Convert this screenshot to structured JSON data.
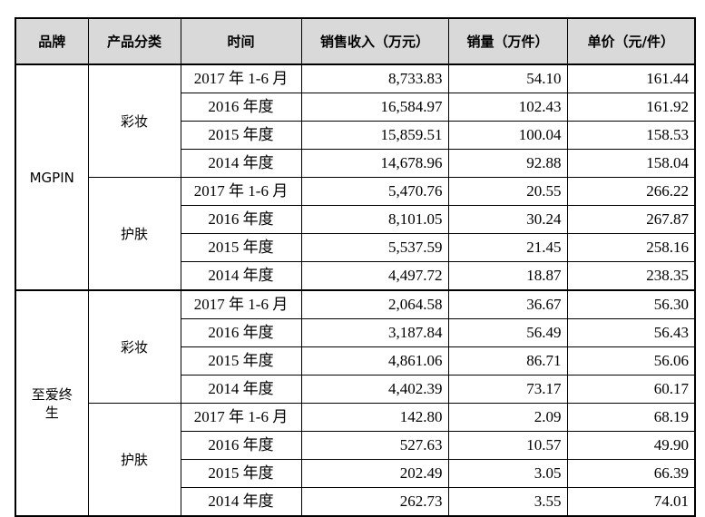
{
  "headers": {
    "brand": "品牌",
    "category": "产品分类",
    "time": "时间",
    "revenue": "销售收入（万元）",
    "volume": "销量（万件）",
    "unit_price": "单价（元/件）"
  },
  "brands": [
    {
      "name": "MGPIN",
      "categories": [
        {
          "name": "彩妆",
          "rows": [
            {
              "time": "2017 年 1-6 月",
              "revenue": "8,733.83",
              "volume": "54.10",
              "price": "161.44"
            },
            {
              "time": "2016 年度",
              "revenue": "16,584.97",
              "volume": "102.43",
              "price": "161.92"
            },
            {
              "time": "2015 年度",
              "revenue": "15,859.51",
              "volume": "100.04",
              "price": "158.53"
            },
            {
              "time": "2014 年度",
              "revenue": "14,678.96",
              "volume": "92.88",
              "price": "158.04"
            }
          ]
        },
        {
          "name": "护肤",
          "rows": [
            {
              "time": "2017 年 1-6 月",
              "revenue": "5,470.76",
              "volume": "20.55",
              "price": "266.22"
            },
            {
              "time": "2016 年度",
              "revenue": "8,101.05",
              "volume": "30.24",
              "price": "267.87"
            },
            {
              "time": "2015 年度",
              "revenue": "5,537.59",
              "volume": "21.45",
              "price": "258.16"
            },
            {
              "time": "2014 年度",
              "revenue": "4,497.72",
              "volume": "18.87",
              "price": "238.35"
            }
          ]
        }
      ]
    },
    {
      "name": "至爱终生",
      "categories": [
        {
          "name": "彩妆",
          "rows": [
            {
              "time": "2017 年 1-6 月",
              "revenue": "2,064.58",
              "volume": "36.67",
              "price": "56.30"
            },
            {
              "time": "2016 年度",
              "revenue": "3,187.84",
              "volume": "56.49",
              "price": "56.43"
            },
            {
              "time": "2015 年度",
              "revenue": "4,861.06",
              "volume": "86.71",
              "price": "56.06"
            },
            {
              "time": "2014 年度",
              "revenue": "4,402.39",
              "volume": "73.17",
              "price": "60.17"
            }
          ]
        },
        {
          "name": "护肤",
          "rows": [
            {
              "time": "2017 年 1-6 月",
              "revenue": "142.80",
              "volume": "2.09",
              "price": "68.19"
            },
            {
              "time": "2016 年度",
              "revenue": "527.63",
              "volume": "10.57",
              "price": "49.90"
            },
            {
              "time": "2015 年度",
              "revenue": "202.49",
              "volume": "3.05",
              "price": "66.39"
            },
            {
              "time": "2014 年度",
              "revenue": "262.73",
              "volume": "3.55",
              "price": "74.01"
            }
          ]
        }
      ]
    }
  ]
}
